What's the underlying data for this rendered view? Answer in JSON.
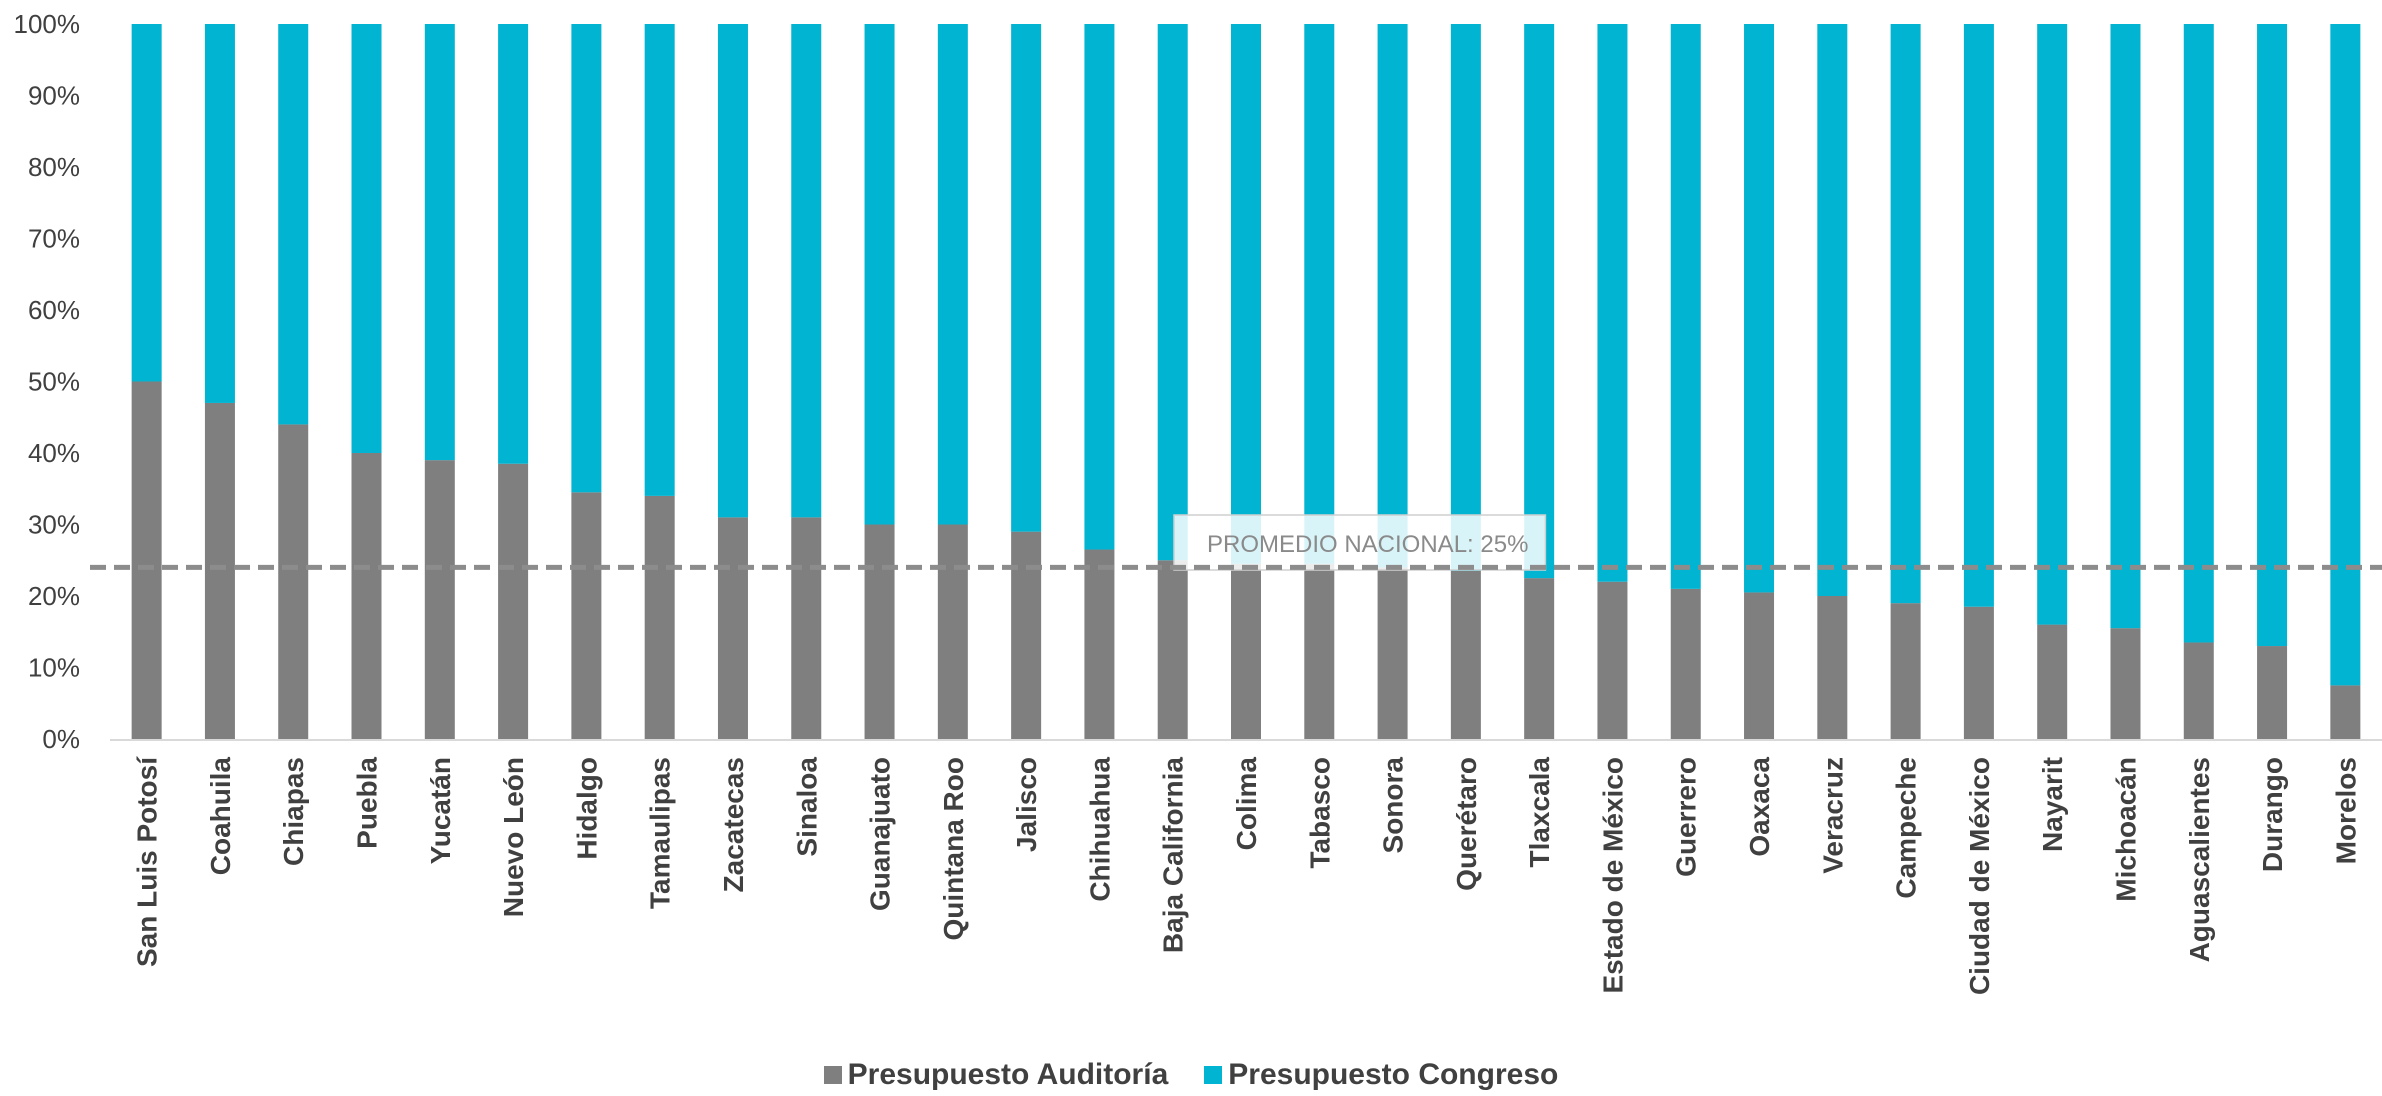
{
  "chart_data": {
    "type": "bar",
    "stacked": "percent",
    "categories": [
      "San Luis Potosí",
      "Coahuila",
      "Chiapas",
      "Puebla",
      "Yucatán",
      "Nuevo León",
      "Hidalgo",
      "Tamaulipas",
      "Zacatecas",
      "Sinaloa",
      "Guanajuato",
      "Quintana Roo",
      "Jalisco",
      "Chihuahua",
      "Baja California",
      "Colima",
      "Tabasco",
      "Sonora",
      "Querétaro",
      "Tlaxcala",
      "Estado de México",
      "Guerrero",
      "Oaxaca",
      "Veracruz",
      "Campeche",
      "Ciudad de México",
      "Nayarit",
      "Michoacán",
      "Aguascalientes",
      "Durango",
      "Morelos"
    ],
    "series": [
      {
        "name": "Presupuesto Auditoría",
        "color": "#7f7f7f",
        "values": [
          50,
          47,
          44,
          40,
          39,
          38.5,
          34.5,
          34,
          31,
          31,
          30,
          30,
          29,
          26.5,
          25,
          24.5,
          24.5,
          24,
          23.5,
          22.5,
          22,
          21,
          20.5,
          20,
          19,
          18.5,
          16,
          15.5,
          13.5,
          13,
          7.5
        ]
      },
      {
        "name": "Presupuesto Congreso",
        "color": "#00b4d2",
        "values": [
          50,
          53,
          56,
          60,
          61,
          61.5,
          65.5,
          66,
          69,
          69,
          70,
          70,
          71,
          73.5,
          75,
          75.5,
          75.5,
          76,
          76.5,
          77.5,
          78,
          79,
          79.5,
          80,
          81,
          81.5,
          84,
          84.5,
          86.5,
          87,
          92.5
        ]
      }
    ],
    "yticks": [
      "0%",
      "10%",
      "20%",
      "30%",
      "40%",
      "50%",
      "60%",
      "70%",
      "80%",
      "90%",
      "100%"
    ],
    "ylim": [
      0,
      100
    ],
    "reference_line": {
      "value": 24,
      "label": "PROMEDIO NACIONAL: 25%",
      "style": "dashed",
      "color": "#8c8c8c"
    },
    "legend_position": "bottom-center",
    "grid": false
  }
}
